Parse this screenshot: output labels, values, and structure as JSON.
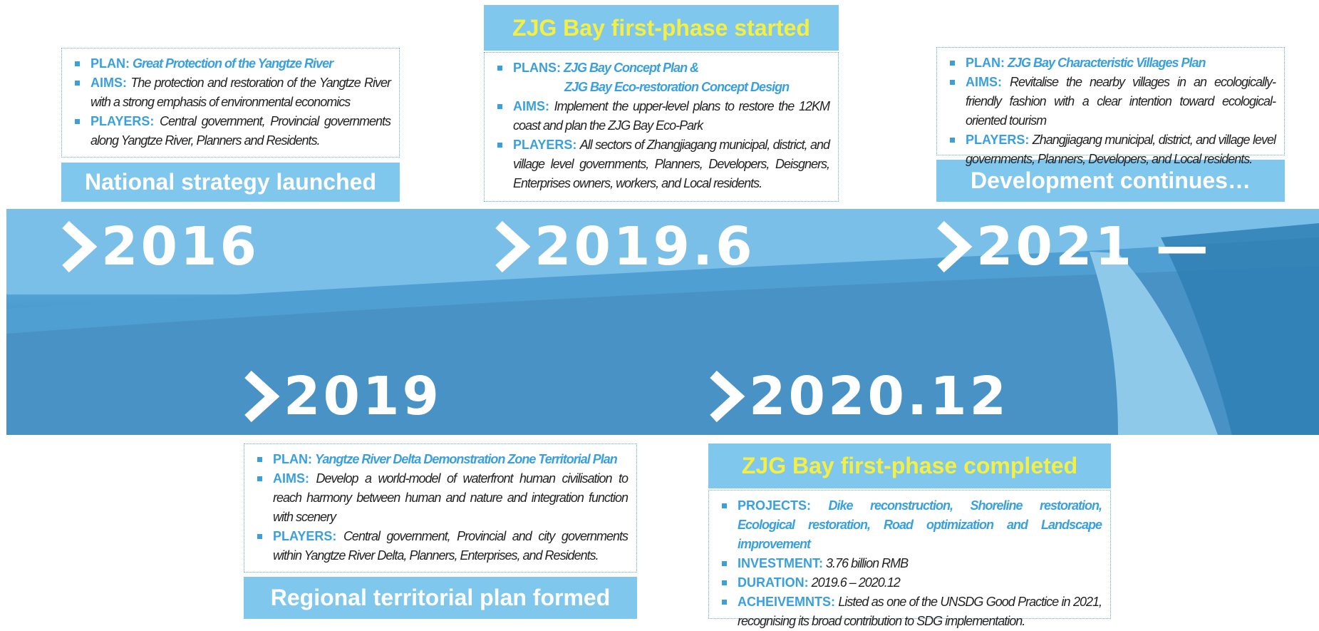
{
  "milestones": [
    {
      "year": "2016",
      "heading": "National strategy launched",
      "items": [
        {
          "label": "PLAN:",
          "text": "Great Protection of the Yangtze River"
        },
        {
          "label": "AIMS:",
          "text": "The protection and restoration of the Yangtze River with a strong emphasis of environmental economics"
        },
        {
          "label": "PLAYERS:",
          "text": "Central government, Provincial governments along Yangtze River, Planners and Residents."
        }
      ]
    },
    {
      "year": "2019",
      "heading": "Regional territorial plan formed",
      "items": [
        {
          "label": "PLAN:",
          "text": "Yangtze River Delta Demonstration Zone Territorial Plan"
        },
        {
          "label": "AIMS:",
          "text": "Develop a world-model of waterfront human civilisation to reach harmony between human and nature and integration function with scenery"
        },
        {
          "label": "PLAYERS:",
          "text": "Central government, Provincial and city governments within Yangtze River Delta, Planners, Enterprises, and Residents."
        }
      ]
    },
    {
      "year": "2019.6",
      "heading": "ZJG Bay first-phase started",
      "items": [
        {
          "label": "PLANS:",
          "text": "ZJG Bay Concept Plan &",
          "text_line2": "ZJG Bay Eco-restoration Concept Design"
        },
        {
          "label": "AIMS:",
          "text": "Implement the upper-level plans to restore the 12KM coast and plan the ZJG Bay Eco-Park"
        },
        {
          "label": "PLAYERS:",
          "text": "All sectors of Zhangjiagang municipal, district, and village level governments, Planners, Developers, Deisgners, Enterprises owners, workers, and Local residents."
        }
      ]
    },
    {
      "year": "2020.12",
      "heading": "ZJG Bay first-phase completed",
      "items": [
        {
          "label": "PROJECTS:",
          "text": "Dike reconstruction, Shoreline restoration, Ecological restoration, Road optimization and Landscape improvement"
        },
        {
          "label": "INVESTMENT:",
          "text": "3.76  billion RMB"
        },
        {
          "label": "DURATION:",
          "text": "2019.6 – 2020.12"
        },
        {
          "label": "ACHEIVEMNTS:",
          "text": "Listed as one of the UNSDG Good Practice in 2021, recognising its broad contribution to SDG implementation."
        }
      ]
    },
    {
      "year": "2021 —",
      "heading": "Development continues…",
      "items": [
        {
          "label": "PLAN:",
          "text": "ZJG Bay Characteristic Villages Plan"
        },
        {
          "label": "AIMS:",
          "text": "Revitalise the nearby villages in an ecologically-friendly fashion with a clear intention toward ecological-oriented tourism"
        },
        {
          "label": "PLAYERS:",
          "text": "Zhangjiagang municipal, district, and village level governments, Planners, Developers, and Local residents."
        }
      ]
    }
  ]
}
